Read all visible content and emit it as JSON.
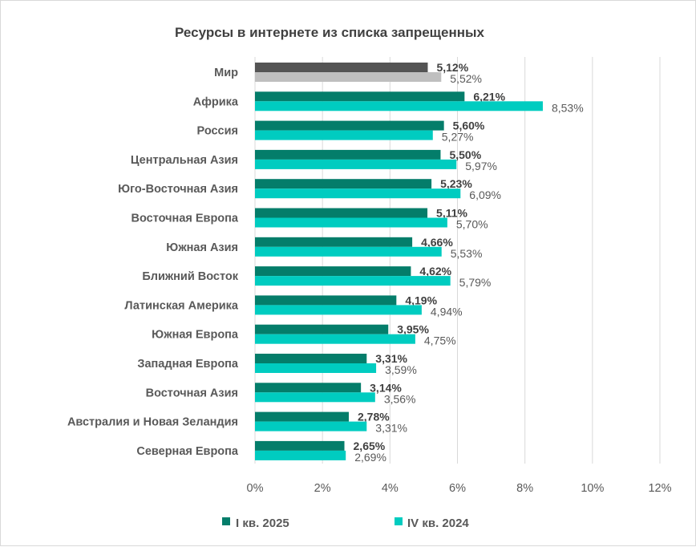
{
  "chart_data": {
    "type": "bar",
    "orientation": "horizontal",
    "title": "Ресурсы в интернете из списка запрещенных",
    "categories": [
      "Мир",
      "Африка",
      "Россия",
      "Центральная Азия",
      "Юго-Восточная Азия",
      "Восточная Европа",
      "Южная Азия",
      "Ближний Восток",
      "Латинская Америка",
      "Южная Европа",
      "Западная Европа",
      "Восточная Азия",
      "Австралия и Новая Зеландия",
      "Северная Европа"
    ],
    "series": [
      {
        "name": "I кв. 2025",
        "color": "#047D6A",
        "highlight_color": "#545454",
        "values": [
          5.12,
          6.21,
          5.6,
          5.5,
          5.23,
          5.11,
          4.66,
          4.62,
          4.19,
          3.95,
          3.31,
          3.14,
          2.78,
          2.65
        ],
        "labels": [
          "5,12%",
          "6,21%",
          "5,60%",
          "5,50%",
          "5,23%",
          "5,11%",
          "4,66%",
          "4,62%",
          "4,19%",
          "3,95%",
          "3,31%",
          "3,14%",
          "2,78%",
          "2,65%"
        ]
      },
      {
        "name": "IV кв. 2024",
        "color": "#00CCC0",
        "highlight_color": "#BFBFBF",
        "values": [
          5.52,
          8.53,
          5.27,
          5.97,
          6.09,
          5.7,
          5.53,
          5.79,
          4.94,
          4.75,
          3.59,
          3.56,
          3.31,
          2.69
        ],
        "labels": [
          "5,52%",
          "8,53%",
          "5,27%",
          "5,97%",
          "6,09%",
          "5,70%",
          "5,53%",
          "5,79%",
          "4,94%",
          "4,75%",
          "3,59%",
          "3,56%",
          "3,31%",
          "2,69%"
        ]
      }
    ],
    "xlim": [
      0,
      12
    ],
    "xticks": [
      0,
      2,
      4,
      6,
      8,
      10,
      12
    ],
    "xtick_labels": [
      "0%",
      "2%",
      "4%",
      "6%",
      "8%",
      "10%",
      "12%"
    ],
    "grid": true,
    "legend_position": "bottom"
  }
}
